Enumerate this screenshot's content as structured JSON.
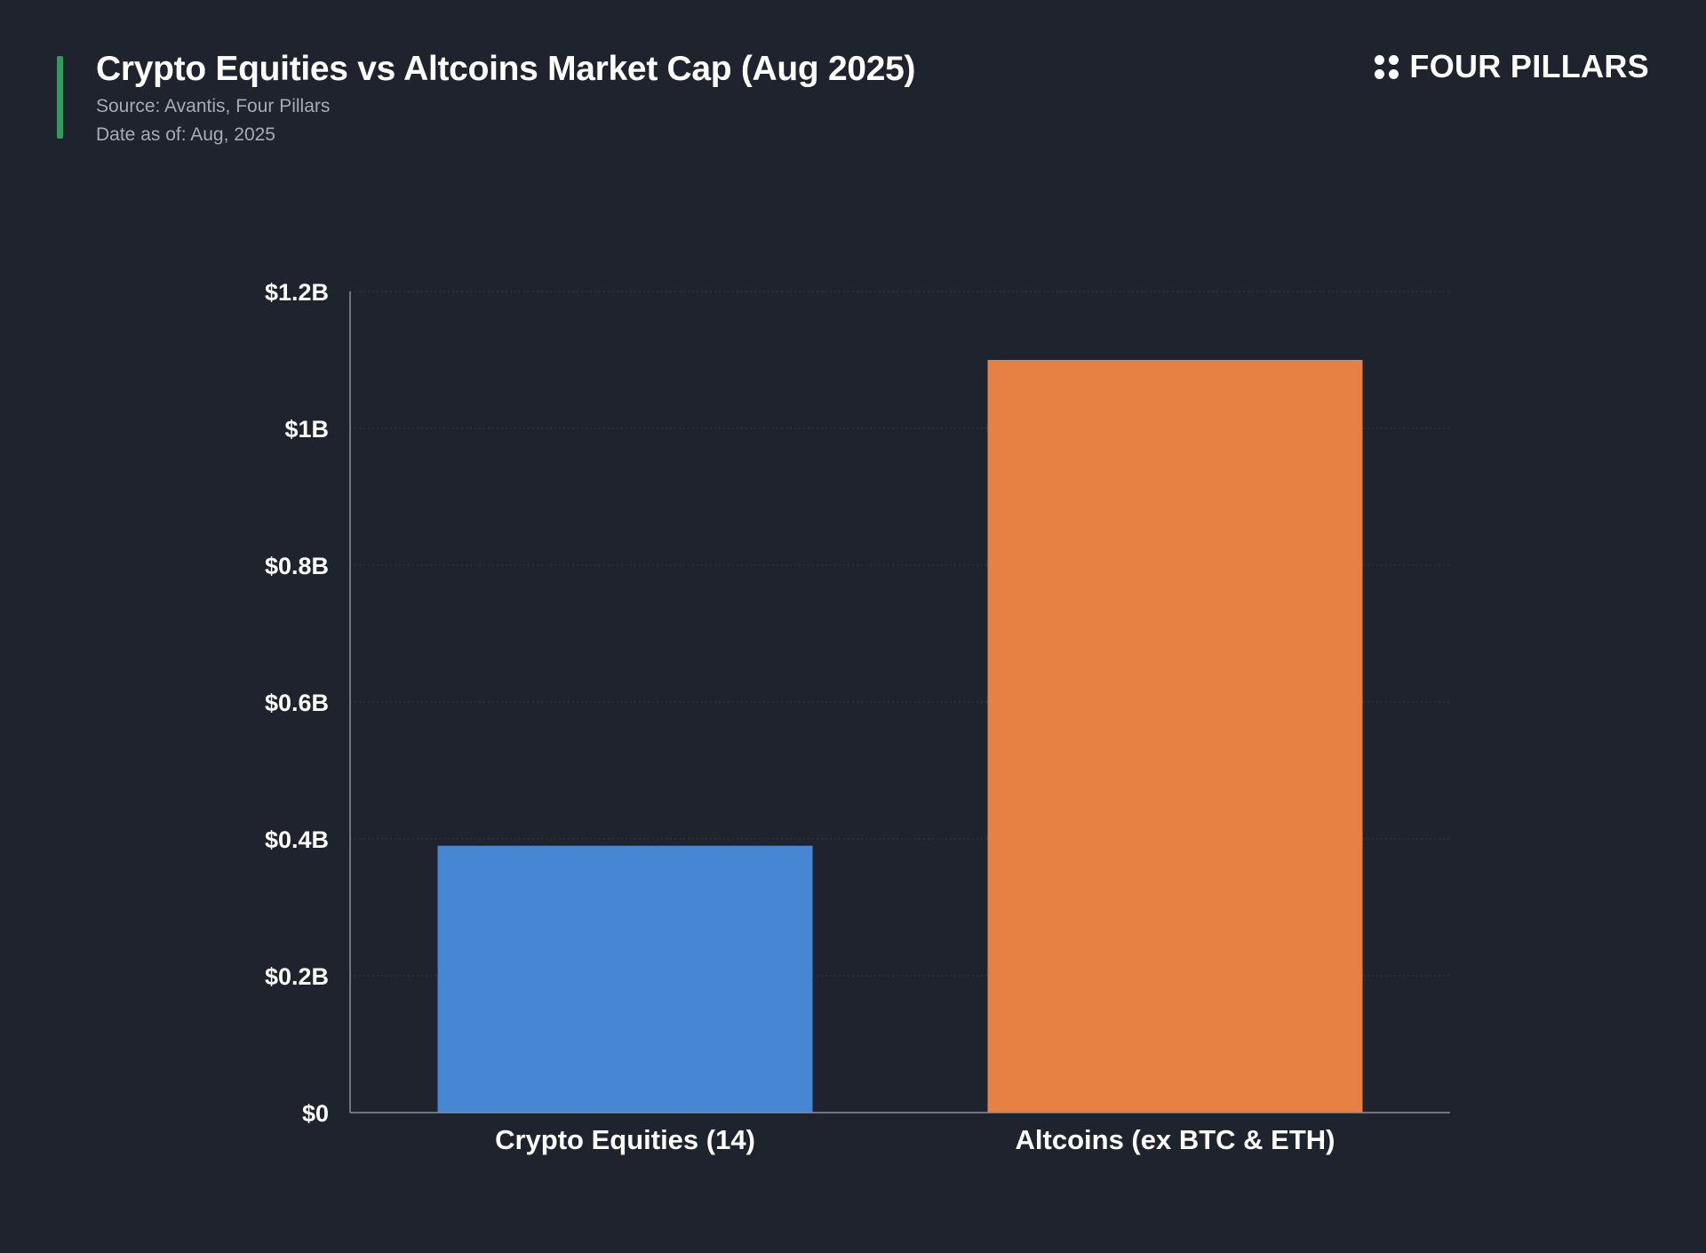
{
  "header": {
    "title": "Crypto Equities vs Altcoins Market Cap (Aug 2025)",
    "source": "Source: Avantis, Four Pillars",
    "date": "Date as of: Aug, 2025",
    "accent_color": "#2e9e5b"
  },
  "logo": {
    "text": "FOUR PILLARS",
    "icon": "four-dots-icon"
  },
  "chart_data": {
    "type": "bar",
    "title": "Crypto Equities vs Altcoins Market Cap (Aug 2025)",
    "xlabel": "",
    "ylabel": "",
    "categories": [
      "Crypto Equities (14)",
      "Altcoins (ex BTC & ETH)"
    ],
    "values": [
      0.39,
      1.1
    ],
    "unit": "B USD",
    "colors": [
      "#4786d2",
      "#e78143"
    ],
    "ylim": [
      0,
      1.2
    ],
    "yticks": [
      0,
      0.2,
      0.4,
      0.6,
      0.8,
      1.0,
      1.2
    ],
    "ytick_labels": [
      "$0",
      "$0.2B",
      "$0.4B",
      "$0.6B",
      "$0.8B",
      "$1B",
      "$1.2B"
    ],
    "grid": true,
    "legend": "none"
  }
}
